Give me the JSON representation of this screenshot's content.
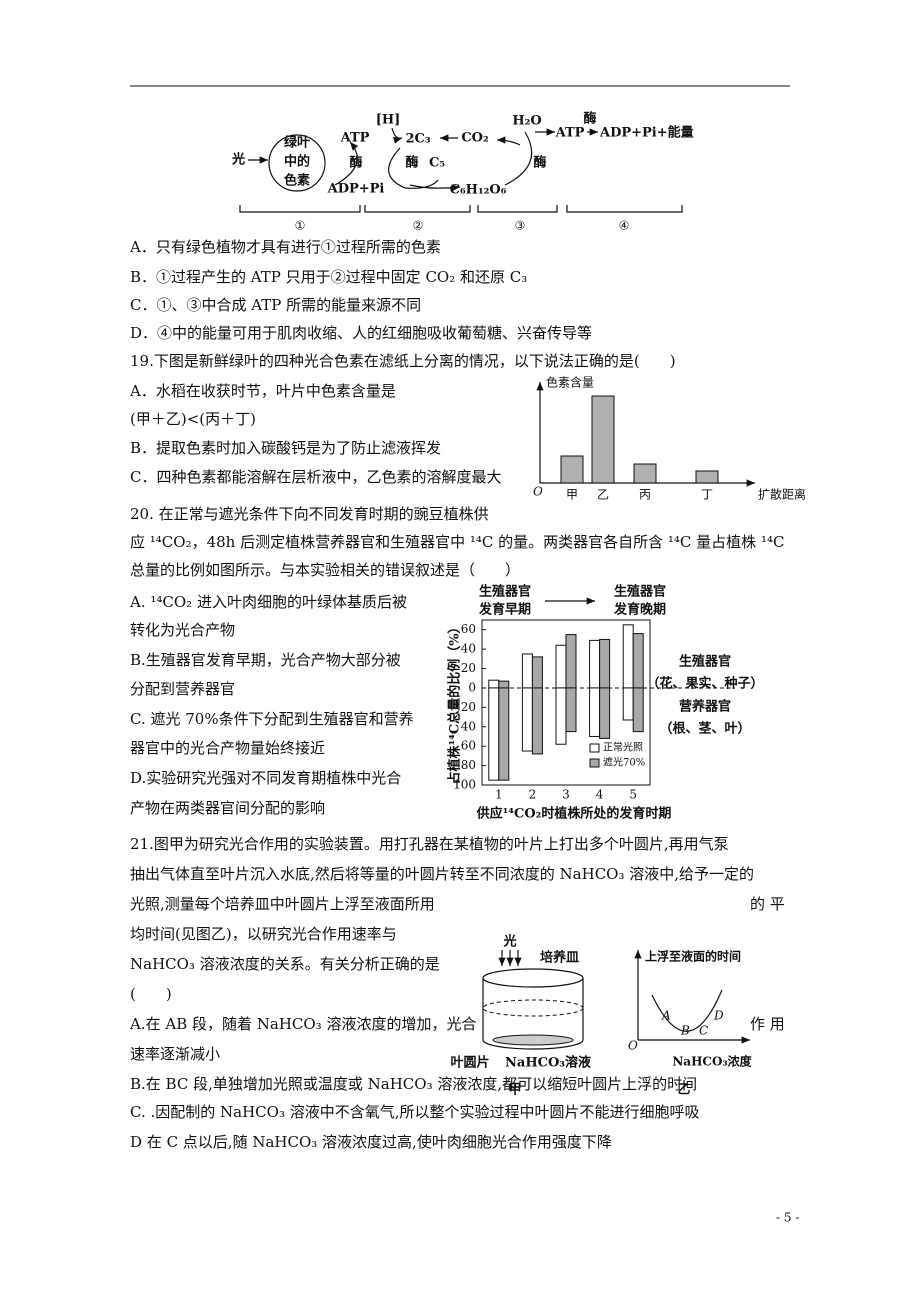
{
  "diagram1": {
    "light": "光",
    "pigment": [
      "绿叶",
      "中的",
      "色素"
    ],
    "h": "[H]",
    "atp1": "ATP",
    "enzyme1": "酶",
    "adp1": "ADP+Pi",
    "c3": "2C₃",
    "enzyme2": "酶",
    "c5": "C₅",
    "co2": "CO₂",
    "glucose": "C₆H₁₂O₆",
    "h2o": "H₂O",
    "enzyme3": "酶",
    "atp2": "ATP",
    "enzyme4": "酶",
    "products": "ADP+Pi+能量",
    "stages": [
      "①",
      "②",
      "③",
      "④"
    ]
  },
  "q18": {
    "options": [
      "A．只有绿色植物才具有进行①过程所需的色素",
      "B．①过程产生的 ATP 只用于②过程中固定 CO₂ 和还原 C₃",
      "C．①、③中合成 ATP 所需的能量来源不同",
      "D．④中的能量可用于肌肉收缩、人的红细胞吸收葡萄糖、兴奋传导等"
    ]
  },
  "q19": {
    "stem": "19.下图是新鲜绿叶的四种光合色素在滤纸上分离的情况，以下说法正确的是(　　)",
    "options": [
      "A．水稻在收获时节，叶片中色素含量是",
      "(甲＋乙)<(丙＋丁)",
      "B．提取色素时加入碳酸钙是为了防止滤液挥发",
      "C．四种色素都能溶解在层析液中，乙色素的溶解度最大"
    ]
  },
  "q20": {
    "stem": [
      "20. 在正常与遮光条件下向不同发育时期的豌豆植株供",
      "应 ¹⁴CO₂，48h 后测定植株营养器官和生殖器官中 ¹⁴C 的量。两类器官各自所含 ¹⁴C 量占植株 ¹⁴C",
      "总量的比例如图所示。与本实验相关的错误叙述是（　　）"
    ],
    "options": [
      "A. ¹⁴CO₂ 进入叶肉细胞的叶绿体基质后被",
      "转化为光合产物",
      "B.生殖器官发育早期，光合产物大部分被",
      "分配到营养器官",
      "C. 遮光 70%条件下分配到生殖器官和营养",
      "器官中的光合产物量始终接近",
      "D.实验研究光强对不同发育期植株中光合",
      "产物在两类器官间分配的影响"
    ]
  },
  "q21": {
    "stem": [
      "21.图甲为研究光合作用的实验装置。用打孔器在某植物的叶片上打出多个叶圆片,再用气泵",
      "抽出气体直至叶片沉入水底,然后将等量的叶圆片转至不同浓度的 NaHCO₃ 溶液中,给予一定的",
      "光照,测量每个培养皿中叶圆片上浮至液面所用",
      "的 平",
      "均时间(见图乙)，以研究光合作用速率与",
      "NaHCO₃ 溶液浓度的关系。有关分析正确的是",
      "(　　)"
    ],
    "options": [
      "A.在 AB 段，随着 NaHCO₃ 溶液浓度的增加，光合",
      "作 用",
      "速率逐渐减小",
      "B.在 BC 段,单独增加光照或温度或 NaHCO₃ 溶液浓度,都可以缩短叶圆片上浮的时间",
      "C. .因配制的 NaHCO₃ 溶液中不含氧气,所以整个实验过程中叶圆片不能进行细胞呼吸",
      "D 在 C 点以后,随 NaHCO₃ 溶液浓度过高,使叶肉细胞光合作用强度下降"
    ]
  },
  "figure_jia": {
    "light": "光",
    "dish": "培养皿",
    "disc": "叶圆片",
    "solution": "NaHCO₃溶液",
    "caption": "甲"
  },
  "figure_yi": {
    "y_label": "上浮至液面的时间",
    "points": [
      "A",
      "B",
      "C",
      "D"
    ],
    "origin": "O",
    "x_label": "NaHCO₃浓度",
    "caption": "乙"
  },
  "page_number": "- 5 -",
  "chart_data": [
    {
      "type": "bar",
      "y_label": "色素含量",
      "x_label": "扩散距离",
      "origin": "O",
      "categories": [
        "甲",
        "乙",
        "丙",
        "丁"
      ],
      "values": [
        27,
        87,
        19,
        12
      ],
      "color": "#b0b0b0",
      "ylim": [
        0,
        100
      ]
    },
    {
      "type": "bar",
      "stage_start": [
        "生殖器官",
        "发育早期"
      ],
      "stage_end": [
        "生殖器官",
        "发育晚期"
      ],
      "y_label": "占植株¹⁴C总量的比例（%）",
      "x_label": "供应¹⁴CO₂时植株所处的发育时期",
      "region_labels": [
        "生殖器官",
        "（花、果实、种子）",
        "营养器官",
        "（根、茎、叶）"
      ],
      "categories": [
        "1",
        "2",
        "3",
        "4",
        "5"
      ],
      "ylim": [
        -100,
        70
      ],
      "yticks": [
        60,
        40,
        20,
        0,
        {
          "value": -20,
          "label": "20"
        },
        {
          "value": -40,
          "label": "40"
        },
        {
          "value": -60,
          "label": "60"
        },
        {
          "value": -80,
          "label": "80"
        },
        {
          "value": -100,
          "label": "100"
        }
      ],
      "series": [
        {
          "name": "正常光照",
          "color": "#ffffff",
          "values": [
            8,
            35,
            44,
            49,
            65
          ],
          "values_vegetative": [
            -95,
            -65,
            -58,
            -50,
            -33
          ]
        },
        {
          "name": "遮光70%",
          "color": "#a8a8a8",
          "values": [
            7,
            32,
            55,
            50,
            56
          ],
          "values_vegetative": [
            -95,
            -68,
            -45,
            -52,
            -45
          ]
        }
      ]
    }
  ]
}
